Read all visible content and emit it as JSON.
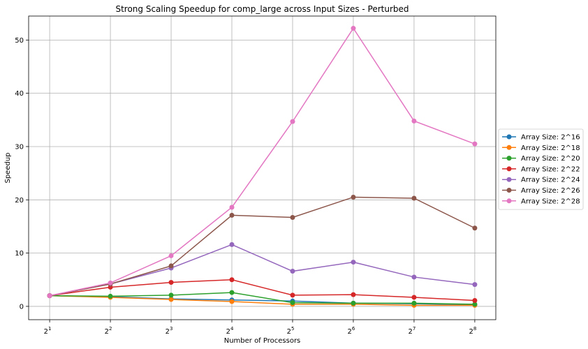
{
  "chart_data": {
    "type": "line",
    "title": "Strong Scaling Speedup for comp_large across Input Sizes - Perturbed",
    "xlabel": "Number of Processors",
    "ylabel": "Speedup",
    "x_scale": "log2",
    "x": [
      2,
      4,
      8,
      16,
      32,
      64,
      128,
      256
    ],
    "x_tick_labels": [
      {
        "base": "2",
        "exp": "1"
      },
      {
        "base": "2",
        "exp": "2"
      },
      {
        "base": "2",
        "exp": "3"
      },
      {
        "base": "2",
        "exp": "4"
      },
      {
        "base": "2",
        "exp": "5"
      },
      {
        "base": "2",
        "exp": "6"
      },
      {
        "base": "2",
        "exp": "7"
      },
      {
        "base": "2",
        "exp": "8"
      }
    ],
    "y_ticks": [
      "0",
      "10",
      "20",
      "30",
      "40",
      "50"
    ],
    "ylim": [
      -2.5,
      54.5
    ],
    "grid": true,
    "legend_position": "outside-right",
    "series": [
      {
        "name": "Array Size: 2^16",
        "color": "#1f77b4",
        "values": [
          2.0,
          1.8,
          1.4,
          1.2,
          1.0,
          0.6,
          0.5,
          0.3
        ]
      },
      {
        "name": "Array Size: 2^18",
        "color": "#ff7f0e",
        "values": [
          2.0,
          1.7,
          1.3,
          0.9,
          0.4,
          0.4,
          0.2,
          0.2
        ]
      },
      {
        "name": "Array Size: 2^20",
        "color": "#2ca02c",
        "values": [
          2.0,
          1.9,
          2.1,
          2.6,
          0.7,
          0.6,
          0.6,
          0.4
        ]
      },
      {
        "name": "Array Size: 2^22",
        "color": "#d62728",
        "values": [
          2.0,
          3.6,
          4.5,
          5.0,
          2.1,
          2.2,
          1.7,
          1.1
        ]
      },
      {
        "name": "Array Size: 2^24",
        "color": "#9467bd",
        "values": [
          2.0,
          4.2,
          7.2,
          11.6,
          6.6,
          8.3,
          5.5,
          4.1
        ]
      },
      {
        "name": "Array Size: 2^26",
        "color": "#8c564b",
        "values": [
          2.0,
          4.2,
          7.6,
          17.1,
          16.7,
          20.5,
          20.3,
          14.7
        ]
      },
      {
        "name": "Array Size: 2^28",
        "color": "#e377c2",
        "values": [
          2.0,
          4.4,
          9.5,
          18.6,
          34.7,
          52.2,
          34.8,
          30.5
        ]
      }
    ]
  }
}
